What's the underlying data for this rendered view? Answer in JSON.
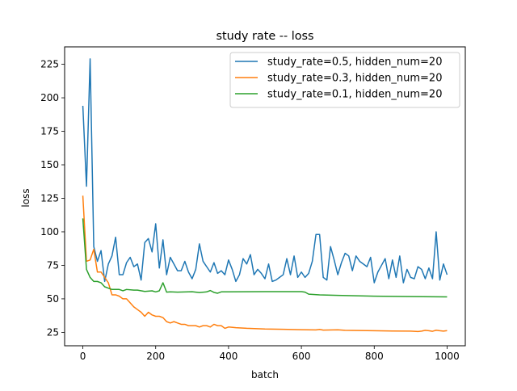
{
  "chart_data": {
    "type": "line",
    "title": "study rate -- loss",
    "xlabel": "batch",
    "ylabel": "loss",
    "xlim": [
      -50,
      1050
    ],
    "ylim": [
      15,
      238
    ],
    "xticks": [
      0,
      200,
      400,
      600,
      800,
      1000
    ],
    "yticks": [
      25,
      50,
      75,
      100,
      125,
      150,
      175,
      200,
      225
    ],
    "grid": false,
    "legend_position": "top-right",
    "series": [
      {
        "name": "study_rate=0.5, hidden_num=20",
        "color": "#1f77b4",
        "points": [
          [
            0,
            194
          ],
          [
            10,
            134
          ],
          [
            20,
            229
          ],
          [
            30,
            89
          ],
          [
            40,
            78
          ],
          [
            50,
            86
          ],
          [
            60,
            63
          ],
          [
            70,
            76
          ],
          [
            80,
            82
          ],
          [
            90,
            96
          ],
          [
            100,
            68
          ],
          [
            110,
            68
          ],
          [
            120,
            77
          ],
          [
            130,
            81
          ],
          [
            140,
            74
          ],
          [
            150,
            76
          ],
          [
            160,
            64
          ],
          [
            170,
            92
          ],
          [
            180,
            95
          ],
          [
            190,
            85
          ],
          [
            200,
            106
          ],
          [
            210,
            73
          ],
          [
            220,
            94
          ],
          [
            230,
            68
          ],
          [
            240,
            81
          ],
          [
            250,
            76
          ],
          [
            260,
            71
          ],
          [
            270,
            71
          ],
          [
            280,
            78
          ],
          [
            290,
            70
          ],
          [
            300,
            65
          ],
          [
            310,
            72
          ],
          [
            320,
            91
          ],
          [
            330,
            78
          ],
          [
            340,
            74
          ],
          [
            350,
            70
          ],
          [
            360,
            77
          ],
          [
            370,
            69
          ],
          [
            380,
            71
          ],
          [
            390,
            68
          ],
          [
            400,
            79
          ],
          [
            410,
            72
          ],
          [
            420,
            63
          ],
          [
            430,
            68
          ],
          [
            440,
            80
          ],
          [
            450,
            76
          ],
          [
            460,
            83
          ],
          [
            470,
            68
          ],
          [
            480,
            72
          ],
          [
            490,
            69
          ],
          [
            500,
            65
          ],
          [
            510,
            76
          ],
          [
            520,
            63
          ],
          [
            530,
            64
          ],
          [
            540,
            66
          ],
          [
            550,
            68
          ],
          [
            560,
            80
          ],
          [
            570,
            68
          ],
          [
            580,
            82
          ],
          [
            590,
            66
          ],
          [
            600,
            70
          ],
          [
            610,
            66
          ],
          [
            620,
            69
          ],
          [
            630,
            78
          ],
          [
            640,
            98
          ],
          [
            650,
            98
          ],
          [
            660,
            66
          ],
          [
            670,
            64
          ],
          [
            680,
            89
          ],
          [
            690,
            79
          ],
          [
            700,
            68
          ],
          [
            710,
            77
          ],
          [
            720,
            84
          ],
          [
            730,
            82
          ],
          [
            740,
            71
          ],
          [
            750,
            82
          ],
          [
            760,
            78
          ],
          [
            770,
            76
          ],
          [
            780,
            74
          ],
          [
            790,
            81
          ],
          [
            800,
            62
          ],
          [
            810,
            70
          ],
          [
            820,
            75
          ],
          [
            830,
            80
          ],
          [
            840,
            65
          ],
          [
            850,
            79
          ],
          [
            860,
            66
          ],
          [
            870,
            82
          ],
          [
            880,
            62
          ],
          [
            890,
            72
          ],
          [
            900,
            66
          ],
          [
            910,
            65
          ],
          [
            920,
            74
          ],
          [
            930,
            72
          ],
          [
            940,
            65
          ],
          [
            950,
            73
          ],
          [
            960,
            65
          ],
          [
            970,
            100
          ],
          [
            980,
            64
          ],
          [
            990,
            76
          ],
          [
            1000,
            68
          ]
        ]
      },
      {
        "name": "study_rate=0.3, hidden_num=20",
        "color": "#ff7f0e",
        "points": [
          [
            0,
            127
          ],
          [
            10,
            78
          ],
          [
            20,
            79
          ],
          [
            30,
            87
          ],
          [
            40,
            70
          ],
          [
            50,
            70
          ],
          [
            60,
            66
          ],
          [
            70,
            62
          ],
          [
            80,
            53
          ],
          [
            90,
            53
          ],
          [
            100,
            52
          ],
          [
            110,
            50
          ],
          [
            120,
            50
          ],
          [
            130,
            47
          ],
          [
            140,
            44
          ],
          [
            150,
            42
          ],
          [
            160,
            40
          ],
          [
            170,
            37
          ],
          [
            180,
            40
          ],
          [
            190,
            38
          ],
          [
            200,
            37
          ],
          [
            210,
            37
          ],
          [
            220,
            36
          ],
          [
            230,
            33
          ],
          [
            240,
            32
          ],
          [
            250,
            33
          ],
          [
            260,
            32
          ],
          [
            270,
            31
          ],
          [
            280,
            31
          ],
          [
            290,
            30
          ],
          [
            300,
            30
          ],
          [
            310,
            30
          ],
          [
            320,
            29
          ],
          [
            330,
            30
          ],
          [
            340,
            30
          ],
          [
            350,
            29
          ],
          [
            360,
            31
          ],
          [
            370,
            30
          ],
          [
            380,
            30
          ],
          [
            390,
            28
          ],
          [
            400,
            29
          ],
          [
            420,
            28.5
          ],
          [
            450,
            28
          ],
          [
            500,
            27.5
          ],
          [
            550,
            27.3
          ],
          [
            600,
            27
          ],
          [
            640,
            26.8
          ],
          [
            650,
            27.2
          ],
          [
            660,
            26.7
          ],
          [
            700,
            26.9
          ],
          [
            720,
            26.5
          ],
          [
            800,
            26.2
          ],
          [
            850,
            26
          ],
          [
            900,
            25.9
          ],
          [
            920,
            25.6
          ],
          [
            930,
            25.9
          ],
          [
            940,
            26.5
          ],
          [
            950,
            26.2
          ],
          [
            960,
            25.8
          ],
          [
            970,
            26.6
          ],
          [
            980,
            26.2
          ],
          [
            990,
            25.9
          ],
          [
            1000,
            26.3
          ]
        ]
      },
      {
        "name": "study_rate=0.1, hidden_num=20",
        "color": "#2ca02c",
        "points": [
          [
            0,
            110
          ],
          [
            10,
            72
          ],
          [
            20,
            66
          ],
          [
            30,
            63
          ],
          [
            40,
            63
          ],
          [
            50,
            62
          ],
          [
            60,
            59
          ],
          [
            70,
            58
          ],
          [
            80,
            57
          ],
          [
            100,
            57
          ],
          [
            110,
            56
          ],
          [
            120,
            57
          ],
          [
            140,
            56.5
          ],
          [
            150,
            56.5
          ],
          [
            170,
            55.5
          ],
          [
            190,
            56
          ],
          [
            200,
            55.2
          ],
          [
            210,
            56
          ],
          [
            220,
            62
          ],
          [
            230,
            55
          ],
          [
            240,
            55.2
          ],
          [
            260,
            55
          ],
          [
            300,
            55.3
          ],
          [
            320,
            54.7
          ],
          [
            340,
            55.2
          ],
          [
            350,
            56.2
          ],
          [
            360,
            54.8
          ],
          [
            370,
            54.2
          ],
          [
            380,
            55.2
          ],
          [
            400,
            55.2
          ],
          [
            500,
            55.4
          ],
          [
            600,
            55.4
          ],
          [
            610,
            55
          ],
          [
            620,
            53.5
          ],
          [
            650,
            53
          ],
          [
            700,
            52.6
          ],
          [
            800,
            52
          ],
          [
            900,
            51.7
          ],
          [
            1000,
            51.5
          ]
        ]
      }
    ]
  }
}
